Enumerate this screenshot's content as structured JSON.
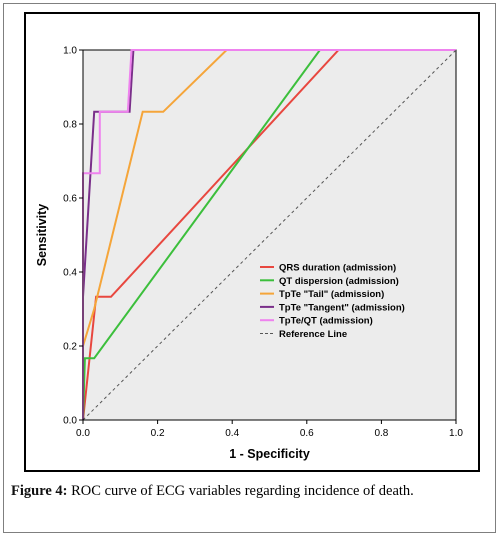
{
  "caption": {
    "label": "Figure 4:",
    "text": " ROC curve of ECG variables regarding incidence of death."
  },
  "chart_data": {
    "type": "line",
    "title": "",
    "xlabel": "1 - Specificity",
    "ylabel": "Sensitivity",
    "xlim": [
      0,
      1
    ],
    "ylim": [
      0,
      1
    ],
    "x_ticks": [
      "0.0",
      "0.2",
      "0.4",
      "0.6",
      "0.8",
      "1.0"
    ],
    "y_ticks": [
      "0.0",
      "0.2",
      "0.4",
      "0.6",
      "0.8",
      "1.0"
    ],
    "grid": false,
    "plot_background": "#ececec",
    "legend_position": "bottom-right",
    "series": [
      {
        "name": "QRS duration (admission)",
        "color": "#e8473f",
        "points": [
          [
            0,
            0
          ],
          [
            0.035,
            0.333
          ],
          [
            0.075,
            0.333
          ],
          [
            0.685,
            1.0
          ],
          [
            1.0,
            1.0
          ]
        ]
      },
      {
        "name": "QT dispersion (admission)",
        "color": "#3cbf3c",
        "points": [
          [
            0,
            0
          ],
          [
            0.005,
            0.167
          ],
          [
            0.03,
            0.167
          ],
          [
            0.635,
            1.0
          ],
          [
            1.0,
            1.0
          ]
        ]
      },
      {
        "name": "TpTe \"Tail\" (admission)",
        "color": "#f5a53a",
        "points": [
          [
            0,
            0
          ],
          [
            0,
            0.2
          ],
          [
            0.03,
            0.3
          ],
          [
            0.16,
            0.833
          ],
          [
            0.215,
            0.833
          ],
          [
            0.385,
            1.0
          ],
          [
            1.0,
            1.0
          ]
        ]
      },
      {
        "name": "TpTe \"Tangent\" (admission)",
        "color": "#7a2f8a",
        "points": [
          [
            0,
            0
          ],
          [
            0,
            0.333
          ],
          [
            0.03,
            0.833
          ],
          [
            0.125,
            0.833
          ],
          [
            0.135,
            1.0
          ],
          [
            1.0,
            1.0
          ]
        ]
      },
      {
        "name": "TpTe/QT (admission)",
        "color": "#ee82ee",
        "points": [
          [
            0,
            0
          ],
          [
            0,
            0.667
          ],
          [
            0.045,
            0.667
          ],
          [
            0.045,
            0.833
          ],
          [
            0.12,
            0.833
          ],
          [
            0.13,
            1.0
          ],
          [
            1.0,
            1.0
          ]
        ]
      },
      {
        "name": "Reference Line",
        "color": "#555555",
        "dashed": true,
        "points": [
          [
            0,
            0
          ],
          [
            1,
            1
          ]
        ]
      }
    ]
  }
}
